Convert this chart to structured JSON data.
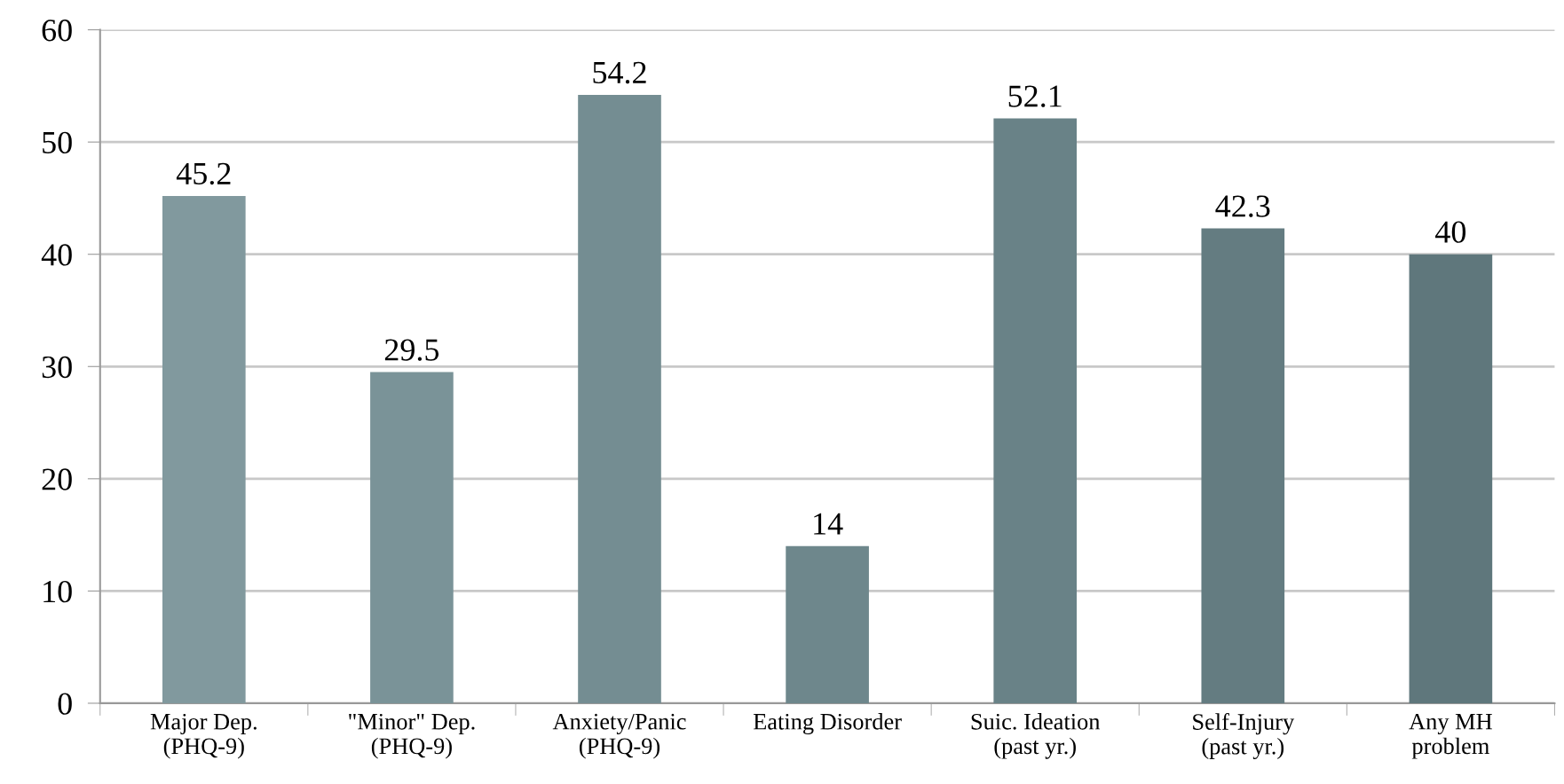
{
  "chart_data": {
    "type": "bar",
    "categories": [
      "Major Dep.\n(PHQ-9)",
      "\"Minor\" Dep.\n(PHQ-9)",
      "Anxiety/Panic\n(PHQ-9)",
      "Eating Disorder",
      "Suic. Ideation\n(past yr.)",
      "Self-Injury\n(past yr.)",
      "Any MH\nproblem"
    ],
    "values": [
      45.2,
      29.5,
      54.2,
      14,
      52.1,
      42.3,
      40
    ],
    "colors": [
      "#81999e",
      "#7a9398",
      "#748d92",
      "#6e878c",
      "#698287",
      "#647c81",
      "#5f777c"
    ],
    "ylim": [
      0,
      60
    ],
    "yticks": [
      0,
      10,
      20,
      30,
      40,
      50,
      60
    ],
    "grid": "y",
    "data_labels": true
  }
}
